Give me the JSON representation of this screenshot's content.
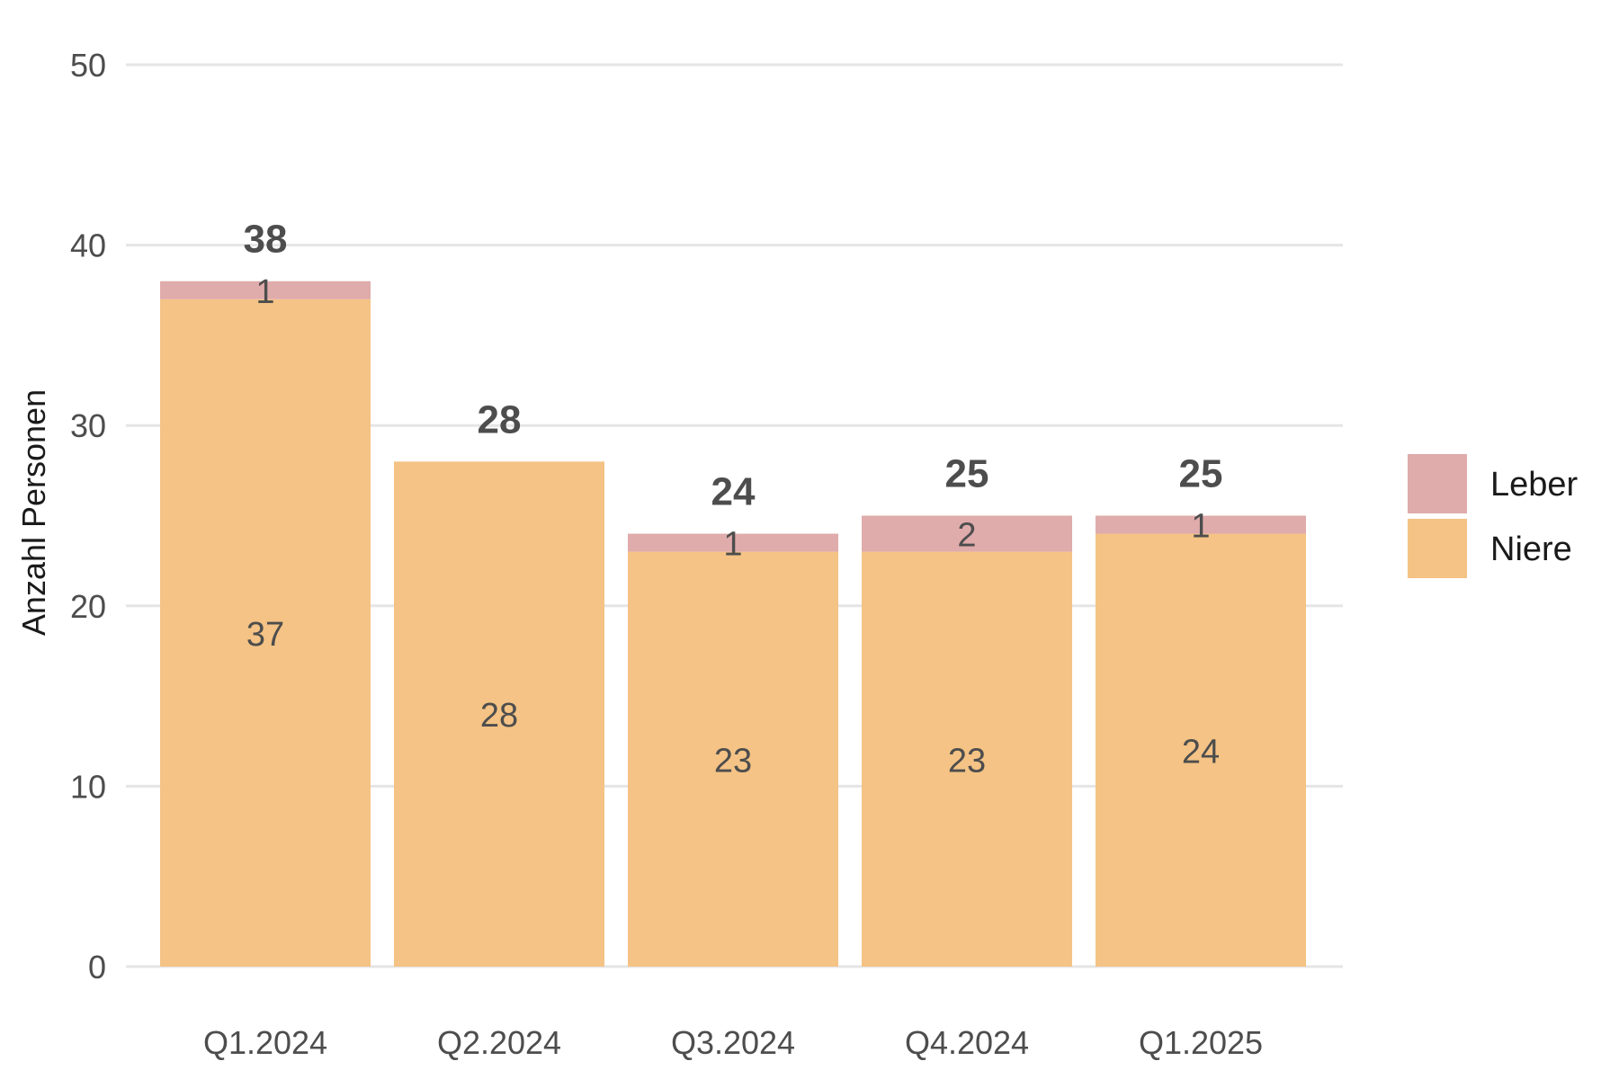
{
  "chart_data": {
    "type": "bar",
    "stacked": true,
    "categories": [
      "Q1.2024",
      "Q2.2024",
      "Q3.2024",
      "Q4.2024",
      "Q1.2025"
    ],
    "series": [
      {
        "name": "Niere",
        "values": [
          37,
          28,
          23,
          23,
          24
        ],
        "color": "#f4c385"
      },
      {
        "name": "Leber",
        "values": [
          1,
          0,
          1,
          2,
          1
        ],
        "color": "#e0abab"
      }
    ],
    "totals": [
      38,
      28,
      24,
      25,
      25
    ],
    "xlabel": "",
    "ylabel": "Anzahl Personen",
    "ylim": [
      0,
      50
    ],
    "yticks": [
      0,
      10,
      20,
      30,
      40,
      50
    ],
    "grid": true,
    "legend_position": "right",
    "legend_order": [
      "Leber",
      "Niere"
    ]
  }
}
